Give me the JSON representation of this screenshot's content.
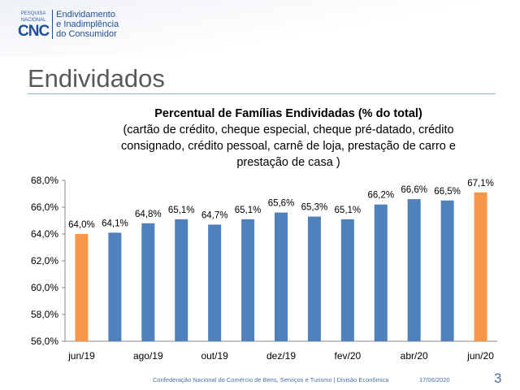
{
  "logo": {
    "top": "PESQUISA",
    "mid": "NACIONAL",
    "brand": "CNC",
    "lines": [
      "Endividamento",
      "e Inadimplência",
      "do Consumidor"
    ]
  },
  "heading": "Endividados",
  "footer": {
    "org": "Confederação Nacional do Comércio de Bens, Serviços e Turismo | Divisão Econômica",
    "date": "17/06/2020",
    "page": "3"
  },
  "colors": {
    "highlight": "#f79646",
    "bar": "#4f81bd"
  },
  "chart_data": {
    "type": "bar",
    "title": "Percentual de Famílias Endividadas (% do total)",
    "subtitle": [
      "(cartão de crédito, cheque especial, cheque pré-datado, crédito",
      "consignado, crédito pessoal, carnê de loja, prestação de carro e",
      "prestação de casa )"
    ],
    "categories": [
      "jun/19",
      "",
      "ago/19",
      "",
      "out/19",
      "",
      "dez/19",
      "",
      "fev/20",
      "",
      "abr/20",
      "",
      "jun/20"
    ],
    "values": [
      64.0,
      64.1,
      64.8,
      65.1,
      64.7,
      65.1,
      65.6,
      65.3,
      65.1,
      66.2,
      66.6,
      66.5,
      67.1
    ],
    "data_labels": [
      "64,0%",
      "64,1%",
      "64,8%",
      "65,1%",
      "64,7%",
      "65,1%",
      "65,6%",
      "65,3%",
      "65,1%",
      "66,2%",
      "66,6%",
      "66,5%",
      "67,1%"
    ],
    "highlighted": [
      0,
      12
    ],
    "ylim": [
      56,
      68
    ],
    "yticks": [
      "56,0%",
      "58,0%",
      "60,0%",
      "62,0%",
      "64,0%",
      "66,0%",
      "68,0%"
    ],
    "grid": false
  }
}
